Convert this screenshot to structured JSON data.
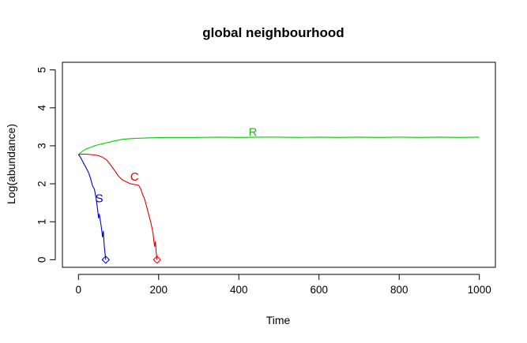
{
  "chart_data": {
    "type": "line",
    "title": "global neighbourhood",
    "xlabel": "Time",
    "ylabel": "Log(abundance)",
    "xlim": [
      -40,
      1040
    ],
    "ylim": [
      -0.2,
      5.2
    ],
    "x_ticks": [
      0,
      200,
      400,
      600,
      800,
      1000
    ],
    "y_ticks": [
      0,
      1,
      2,
      3,
      4,
      5
    ],
    "grid": false,
    "legend": "none",
    "series": [
      {
        "name": "R",
        "color": "#00cc00",
        "label_at": [
          435,
          3.34
        ],
        "points": [
          [
            0,
            2.77
          ],
          [
            10,
            2.86
          ],
          [
            20,
            2.92
          ],
          [
            30,
            2.96
          ],
          [
            40,
            3.0
          ],
          [
            50,
            3.03
          ],
          [
            70,
            3.08
          ],
          [
            90,
            3.13
          ],
          [
            110,
            3.17
          ],
          [
            130,
            3.19
          ],
          [
            150,
            3.2
          ],
          [
            180,
            3.21
          ],
          [
            220,
            3.22
          ],
          [
            260,
            3.22
          ],
          [
            300,
            3.22
          ],
          [
            350,
            3.23
          ],
          [
            400,
            3.22
          ],
          [
            450,
            3.23
          ],
          [
            500,
            3.23
          ],
          [
            550,
            3.22
          ],
          [
            600,
            3.23
          ],
          [
            650,
            3.22
          ],
          [
            700,
            3.23
          ],
          [
            750,
            3.22
          ],
          [
            800,
            3.23
          ],
          [
            850,
            3.22
          ],
          [
            900,
            3.23
          ],
          [
            950,
            3.22
          ],
          [
            1000,
            3.23
          ]
        ]
      },
      {
        "name": "C",
        "color": "#dd0000",
        "label_at": [
          140,
          2.17
        ],
        "end_marker": [
          196,
          0
        ],
        "points": [
          [
            0,
            2.77
          ],
          [
            10,
            2.78
          ],
          [
            20,
            2.78
          ],
          [
            30,
            2.77
          ],
          [
            40,
            2.76
          ],
          [
            50,
            2.74
          ],
          [
            60,
            2.7
          ],
          [
            70,
            2.63
          ],
          [
            80,
            2.5
          ],
          [
            90,
            2.35
          ],
          [
            100,
            2.2
          ],
          [
            110,
            2.1
          ],
          [
            120,
            2.05
          ],
          [
            130,
            2.0
          ],
          [
            140,
            1.98
          ],
          [
            150,
            1.96
          ],
          [
            155,
            1.88
          ],
          [
            160,
            1.72
          ],
          [
            165,
            1.6
          ],
          [
            170,
            1.4
          ],
          [
            175,
            1.2
          ],
          [
            180,
            1.0
          ],
          [
            183,
            0.85
          ],
          [
            186,
            0.7
          ],
          [
            188,
            0.5
          ],
          [
            190,
            0.35
          ],
          [
            192,
            0.48
          ],
          [
            194,
            0.2
          ],
          [
            195,
            0.1
          ],
          [
            196,
            0
          ]
        ]
      },
      {
        "name": "S",
        "color": "#0000cc",
        "label_at": [
          52,
          1.6
        ],
        "end_marker": [
          68,
          0
        ],
        "points": [
          [
            0,
            2.77
          ],
          [
            5,
            2.7
          ],
          [
            10,
            2.6
          ],
          [
            15,
            2.5
          ],
          [
            20,
            2.4
          ],
          [
            25,
            2.3
          ],
          [
            30,
            2.15
          ],
          [
            35,
            1.95
          ],
          [
            40,
            1.85
          ],
          [
            45,
            1.55
          ],
          [
            48,
            1.3
          ],
          [
            50,
            1.1
          ],
          [
            52,
            1.2
          ],
          [
            55,
            1.0
          ],
          [
            58,
            0.8
          ],
          [
            60,
            0.6
          ],
          [
            62,
            0.75
          ],
          [
            64,
            0.4
          ],
          [
            66,
            0.2
          ],
          [
            68,
            0
          ]
        ]
      }
    ]
  }
}
